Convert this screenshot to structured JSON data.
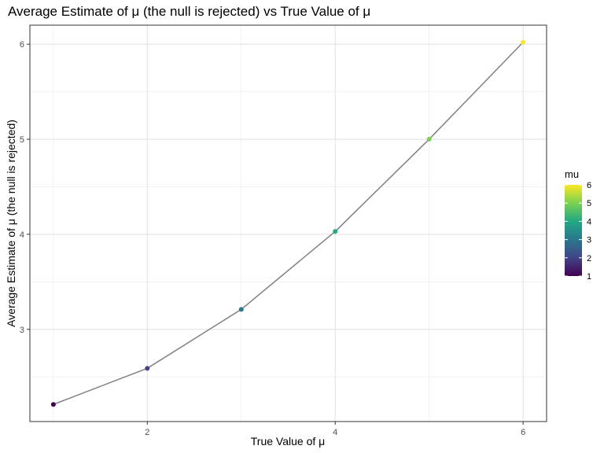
{
  "chart_data": {
    "type": "line",
    "title": "Average Estimate of μ (the null is rejected) vs True Value of μ",
    "xlabel": "True Value of μ",
    "ylabel": "Average Estimate of  μ (the null is rejected)",
    "x": [
      1,
      2,
      3,
      4,
      5,
      6
    ],
    "y": [
      2.21,
      2.59,
      3.21,
      4.03,
      5.0,
      6.02
    ],
    "xlim": [
      0.75,
      6.25
    ],
    "ylim": [
      2.03,
      6.2
    ],
    "x_ticks": [
      2,
      4,
      6
    ],
    "y_ticks": [
      3,
      4,
      5,
      6
    ],
    "line_color": "#808080",
    "point_colors": [
      "#440154",
      "#414487",
      "#2a788e",
      "#22a884",
      "#7ad151",
      "#fde725"
    ],
    "grid": true,
    "legend": {
      "title": "mu",
      "position": "right",
      "labels": [
        "1",
        "2",
        "3",
        "4",
        "5",
        "6"
      ],
      "colormap": "viridis",
      "gradient_colors": [
        "#440154",
        "#414487",
        "#2a788e",
        "#22a884",
        "#7ad151",
        "#fde725"
      ]
    }
  }
}
